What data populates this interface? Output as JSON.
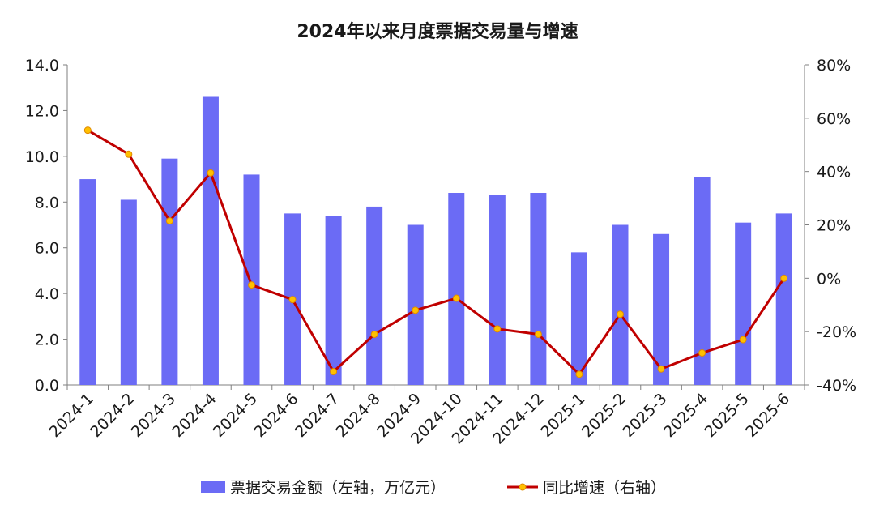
{
  "chart_data": {
    "type": "bar",
    "title": "2024年以来月度票据交易量与增速",
    "categories": [
      "2024-1",
      "2024-2",
      "2024-3",
      "2024-4",
      "2024-5",
      "2024-6",
      "2024-7",
      "2024-8",
      "2024-9",
      "2024-10",
      "2024-11",
      "2024-12",
      "2025-1",
      "2025-2",
      "2025-3",
      "2025-4",
      "2025-5",
      "2025-6"
    ],
    "series": [
      {
        "name": "票据交易金额（左轴，万亿元）",
        "type": "bar",
        "axis": "left",
        "color": "#6b6bf5",
        "values": [
          9.0,
          8.1,
          9.9,
          12.6,
          9.2,
          7.5,
          7.4,
          7.8,
          7.0,
          8.4,
          8.3,
          8.4,
          5.8,
          7.0,
          6.6,
          9.1,
          7.1,
          7.5
        ]
      },
      {
        "name": "同比增速（右轴）",
        "type": "line",
        "axis": "right",
        "color": "#c00000",
        "marker_color": "#ffc000",
        "values": [
          55.5,
          46.5,
          21.5,
          39.5,
          -2.5,
          -8.0,
          -35.0,
          -21.0,
          -12.0,
          -7.5,
          -19.0,
          -21.0,
          -36.0,
          -13.5,
          -34.0,
          -28.0,
          -23.0,
          0.0
        ]
      }
    ],
    "y_left": {
      "ylim": [
        0,
        14
      ],
      "ticks": [
        "0.0",
        "2.0",
        "4.0",
        "6.0",
        "8.0",
        "10.0",
        "12.0",
        "14.0"
      ]
    },
    "y_right": {
      "ylim": [
        -40,
        80
      ],
      "ticks": [
        "-40%",
        "-20%",
        "0%",
        "20%",
        "40%",
        "60%",
        "80%"
      ]
    },
    "grid": false,
    "legend_position": "bottom"
  }
}
